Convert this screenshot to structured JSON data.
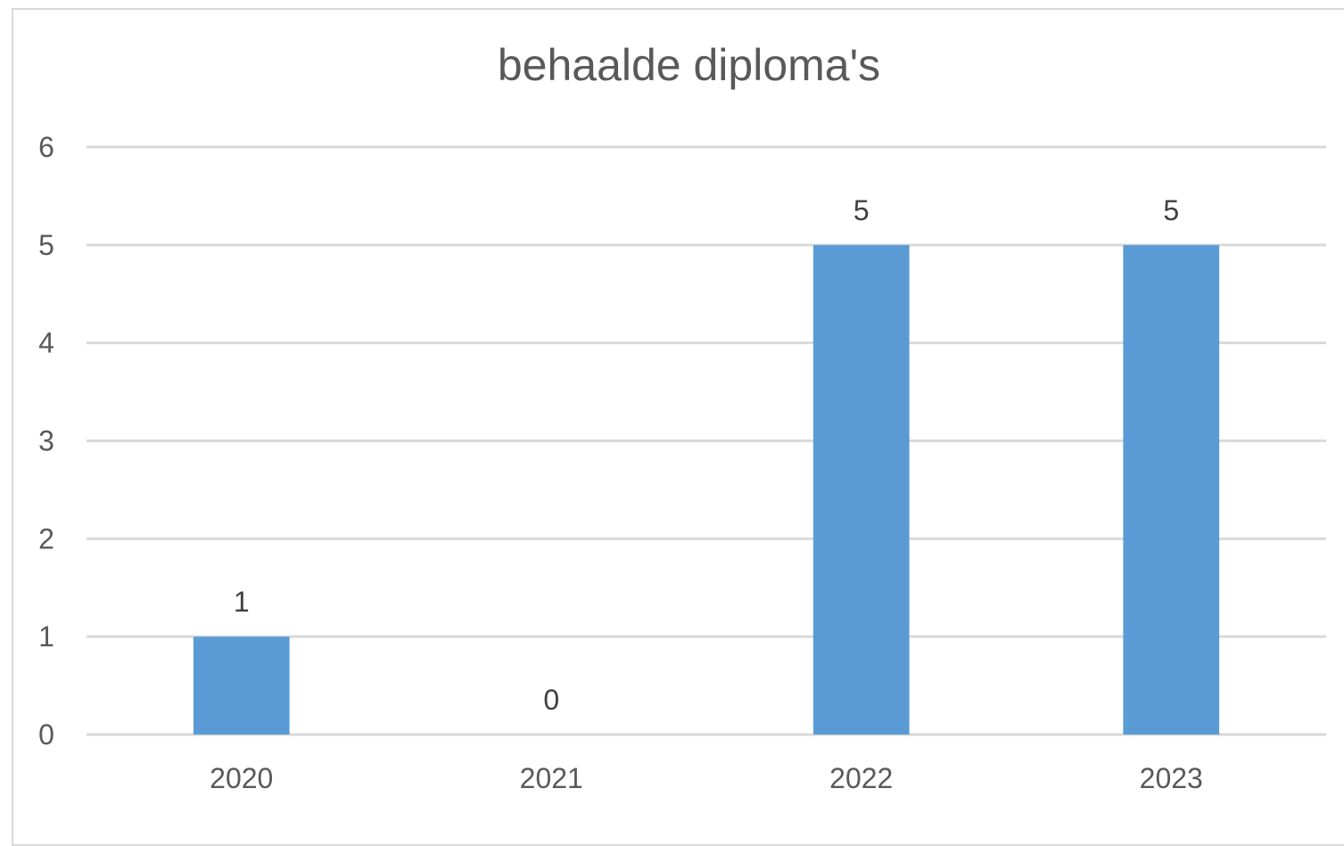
{
  "chart_data": {
    "type": "bar",
    "title": "behaalde diploma's",
    "categories": [
      "2020",
      "2021",
      "2022",
      "2023"
    ],
    "values": [
      1,
      0,
      5,
      5
    ],
    "data_labels": [
      "1",
      "0",
      "5",
      "5"
    ],
    "ylim": [
      0,
      6
    ],
    "yticks": [
      "0",
      "1",
      "2",
      "3",
      "4",
      "5",
      "6"
    ],
    "grid": true,
    "legend": "none",
    "bar_color": "#5b9bd5",
    "gridline_color": "#d9d9d9",
    "text_color": "#595959"
  }
}
